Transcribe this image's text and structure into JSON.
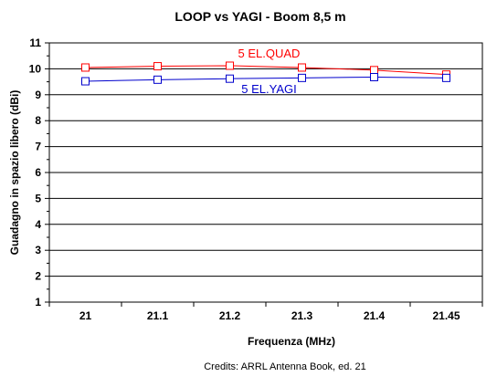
{
  "chart_data": {
    "type": "line",
    "title": "LOOP vs YAGI - Boom 8,5 m",
    "xlabel": "Frequenza (MHz)",
    "ylabel": "Guadagno in spazio libero (dBi)",
    "categories": [
      "21",
      "21.1",
      "21.2",
      "21.3",
      "21.4",
      "21.45"
    ],
    "ylim": [
      1,
      11
    ],
    "yticks": [
      "1",
      "2",
      "3",
      "4",
      "5",
      "6",
      "7",
      "8",
      "9",
      "10",
      "11"
    ],
    "grid": "horizontal",
    "series": [
      {
        "name": "5 EL.QUAD",
        "color": "#ff0000",
        "marker": "square",
        "values": [
          10.05,
          10.1,
          10.12,
          10.05,
          9.95,
          9.78
        ]
      },
      {
        "name": "5 EL.YAGI",
        "color": "#0000cc",
        "marker": "square",
        "values": [
          9.52,
          9.58,
          9.62,
          9.65,
          9.68,
          9.65
        ]
      }
    ],
    "credits": "Credits: ARRL Antenna Book, ed. 21"
  }
}
